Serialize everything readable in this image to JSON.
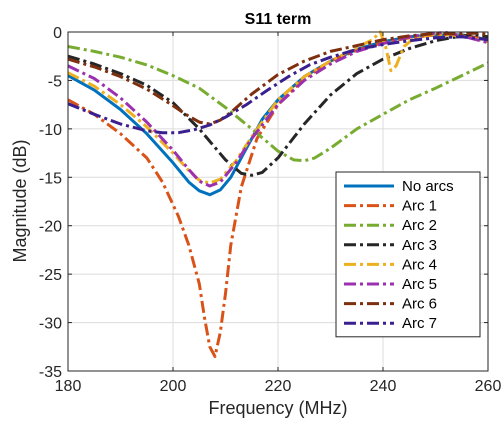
{
  "chart_data": {
    "type": "line",
    "title": "S11 term",
    "xlabel": "Frequency (MHz)",
    "ylabel": "Magnitude (dB)",
    "xlim": [
      180,
      260
    ],
    "ylim": [
      -35,
      0
    ],
    "xticks": [
      180,
      200,
      220,
      240,
      260
    ],
    "yticks": [
      0,
      -5,
      -10,
      -15,
      -20,
      -25,
      -30,
      -35
    ],
    "grid": true,
    "legend_position": "bottom-right",
    "series": [
      {
        "name": "No arcs",
        "color": "#0072BD",
        "style": "solid",
        "x": [
          180,
          185,
          190,
          195,
          200,
          203,
          205,
          207,
          209,
          211,
          214,
          217,
          220,
          225,
          230,
          235,
          240,
          245,
          250,
          255,
          260
        ],
        "y": [
          -4.5,
          -6,
          -8,
          -10.5,
          -13.5,
          -15.5,
          -16.4,
          -16.8,
          -16.3,
          -15,
          -12,
          -9,
          -7,
          -4.6,
          -3,
          -1.8,
          -1,
          -0.5,
          -0.3,
          -0.3,
          -0.8
        ]
      },
      {
        "name": "Arc 1",
        "color": "#D95319",
        "style": "dashdot",
        "x": [
          180,
          185,
          190,
          195,
          198,
          201,
          203,
          205,
          206,
          207,
          208,
          209,
          210,
          211,
          213,
          216,
          220,
          225,
          230,
          235,
          240,
          245,
          250,
          255,
          260
        ],
        "y": [
          -7,
          -8.5,
          -10.5,
          -13,
          -15.5,
          -19,
          -22,
          -26,
          -29.5,
          -32.5,
          -33.5,
          -31,
          -27,
          -22,
          -16,
          -11,
          -7.5,
          -4.8,
          -3,
          -1.9,
          -1.1,
          -0.6,
          -0.3,
          -0.3,
          -0.8
        ]
      },
      {
        "name": "Arc 2",
        "color": "#77AC30",
        "style": "dashdot",
        "x": [
          180,
          185,
          190,
          195,
          200,
          205,
          210,
          215,
          220,
          223,
          225,
          227,
          230,
          235,
          240,
          245,
          250,
          255,
          260
        ],
        "y": [
          -1.5,
          -2,
          -2.6,
          -3.4,
          -4.5,
          -5.8,
          -7.8,
          -10,
          -12.3,
          -13.2,
          -13.3,
          -13,
          -12,
          -10,
          -8.5,
          -7,
          -5.8,
          -4.5,
          -3.2
        ]
      },
      {
        "name": "Arc 3",
        "color": "#262626",
        "style": "dashdot",
        "x": [
          180,
          185,
          190,
          195,
          200,
          205,
          210,
          213,
          215,
          217,
          220,
          225,
          230,
          235,
          240,
          245,
          250,
          255,
          258,
          260
        ],
        "y": [
          -2.5,
          -3.3,
          -4.3,
          -5.5,
          -7.3,
          -10,
          -13.2,
          -14.6,
          -14.8,
          -14.5,
          -13,
          -9.5,
          -6.5,
          -4.3,
          -2.8,
          -1.7,
          -0.9,
          -0.4,
          -0.3,
          -0.5
        ]
      },
      {
        "name": "Arc 4",
        "color": "#EDB120",
        "style": "dashdot",
        "x": [
          180,
          185,
          190,
          195,
          200,
          203,
          205,
          207,
          209,
          212,
          215,
          220,
          225,
          230,
          235,
          238,
          239.5,
          240.5,
          241.5,
          242.5,
          244,
          246,
          250,
          255,
          260
        ],
        "y": [
          -4.2,
          -5.6,
          -7.5,
          -9.8,
          -12.5,
          -14.3,
          -15.3,
          -15.6,
          -15.2,
          -13.3,
          -10.8,
          -7,
          -4.6,
          -3,
          -1.6,
          -0.8,
          0,
          -1.5,
          -4,
          -3.5,
          -1.5,
          -0.6,
          -0.2,
          -0.4,
          -1
        ]
      },
      {
        "name": "Arc 5",
        "color": "#9B30B0",
        "style": "dashdot",
        "x": [
          180,
          185,
          190,
          195,
          200,
          203,
          205,
          207,
          209,
          212,
          215,
          220,
          225,
          230,
          235,
          240,
          245,
          250,
          252,
          255,
          260
        ],
        "y": [
          -3.5,
          -4.8,
          -6.8,
          -9.3,
          -12.2,
          -14.2,
          -15.4,
          -15.9,
          -15.5,
          -13.5,
          -11,
          -7.5,
          -5,
          -3.3,
          -2,
          -1.2,
          -0.5,
          -0.1,
          -0.05,
          -0.4,
          -1.1
        ]
      },
      {
        "name": "Arc 6",
        "color": "#7E2F0E",
        "style": "dashdot",
        "x": [
          180,
          185,
          190,
          195,
          200,
          203,
          205,
          207,
          209,
          211,
          215,
          220,
          225,
          230,
          235,
          240,
          245,
          250,
          255,
          258,
          260
        ],
        "y": [
          -2.8,
          -3.6,
          -4.6,
          -5.9,
          -7.6,
          -8.7,
          -9.3,
          -9.5,
          -9.1,
          -8.3,
          -6.4,
          -4.4,
          -3,
          -2,
          -1.4,
          -0.8,
          -0.4,
          -0.15,
          -0.2,
          -0.1,
          -0.3
        ]
      },
      {
        "name": "Arc 7",
        "color": "#3A1F8F",
        "style": "dashdot",
        "x": [
          180,
          185,
          190,
          195,
          198,
          201,
          204,
          207,
          210,
          214,
          218,
          222,
          226,
          230,
          235,
          240,
          245,
          250,
          255,
          260
        ],
        "y": [
          -7.4,
          -8.5,
          -9.5,
          -10.2,
          -10.4,
          -10.4,
          -10.1,
          -9.6,
          -8.8,
          -7.5,
          -6,
          -4.6,
          -3.4,
          -2.6,
          -1.8,
          -1.3,
          -0.9,
          -0.6,
          -0.5,
          -0.8
        ]
      }
    ]
  }
}
